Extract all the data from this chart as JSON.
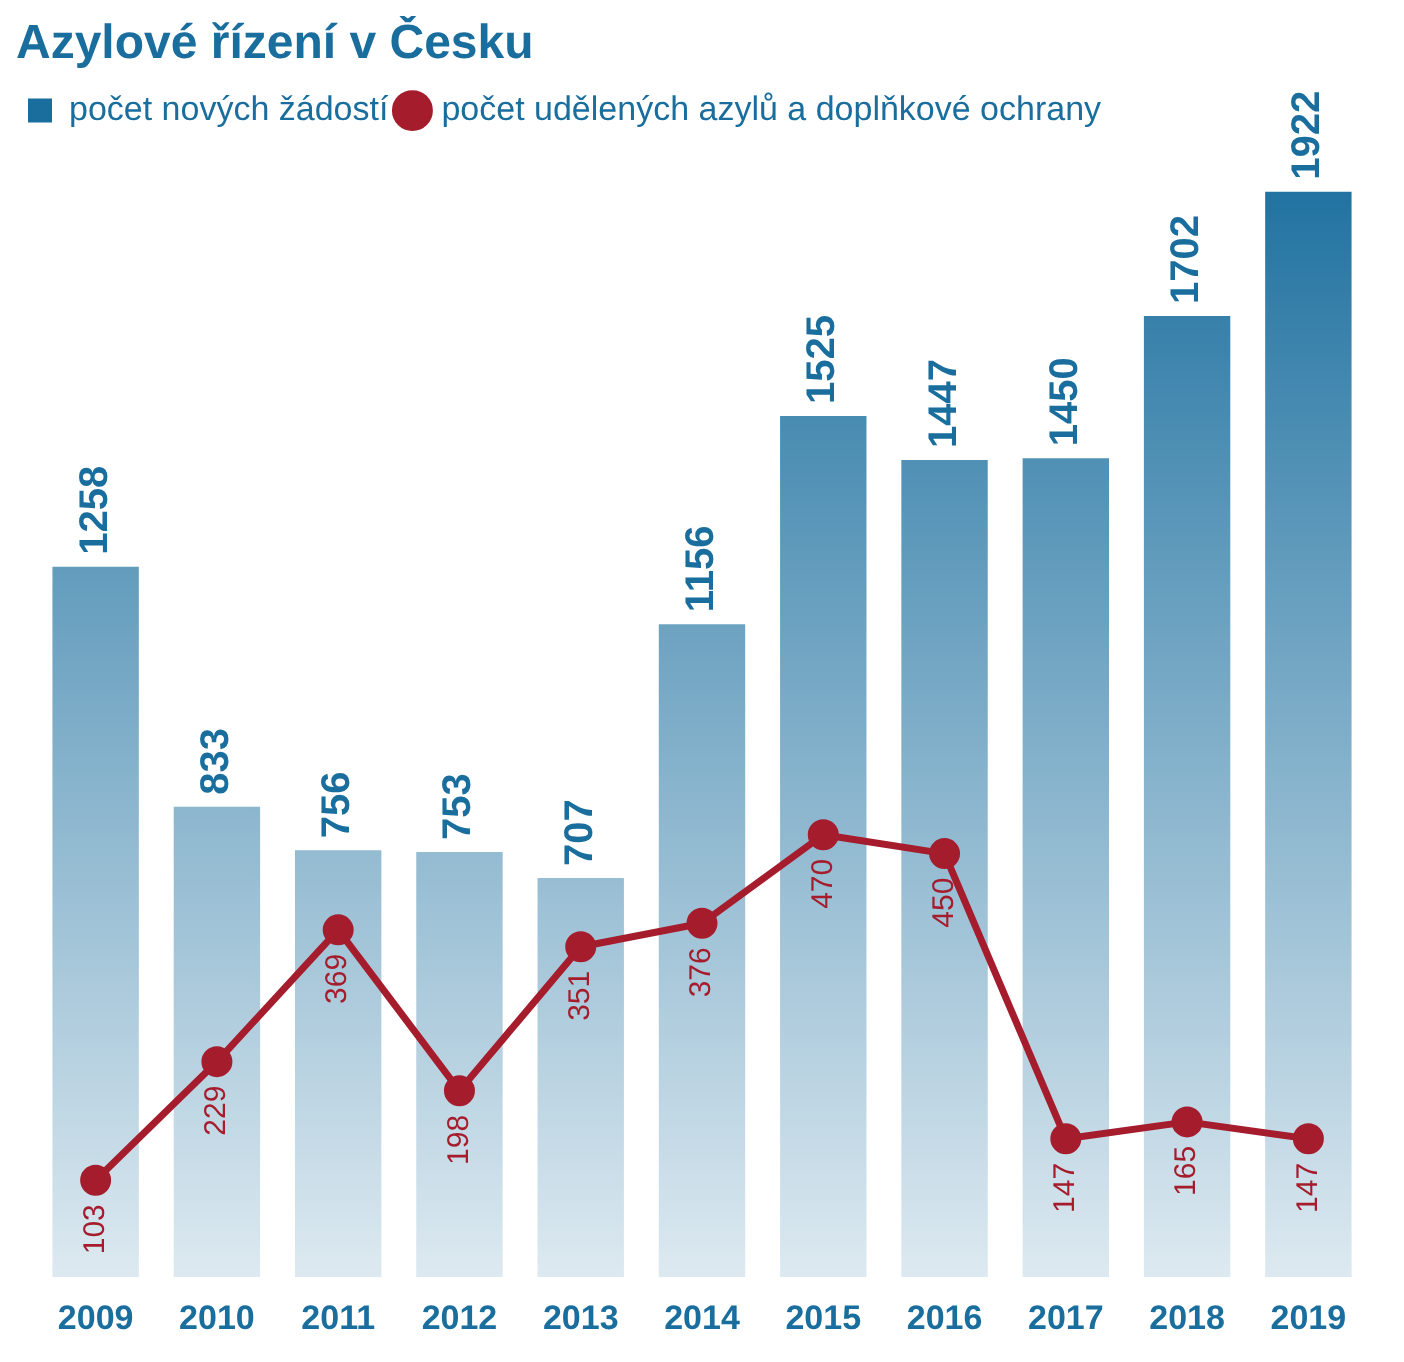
{
  "chart_data": {
    "type": "bar",
    "title": "Azylové řízení v Česku",
    "categories": [
      "2009",
      "2010",
      "2011",
      "2012",
      "2013",
      "2014",
      "2015",
      "2016",
      "2017",
      "2018",
      "2019"
    ],
    "series": [
      {
        "name": "počet nových žádostí",
        "color": "#1a6e9e",
        "values": [
          1258,
          833,
          756,
          753,
          707,
          1156,
          1525,
          1447,
          1450,
          1702,
          1922
        ]
      },
      {
        "name": "počet udělených azylů a doplňkové ochrany",
        "type": "line",
        "axis": "y2",
        "color": "#a51d2d",
        "values": [
          103,
          229,
          369,
          198,
          351,
          376,
          470,
          450,
          147,
          165,
          147
        ]
      }
    ],
    "tick_labels": "x",
    "data_labels": true,
    "grid": false,
    "legend": "top left",
    "marker": "circle"
  }
}
